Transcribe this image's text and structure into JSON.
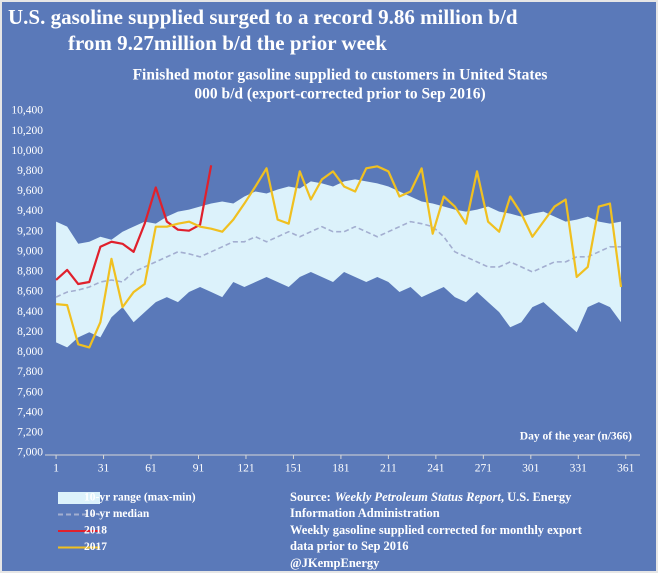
{
  "chart_data": {
    "type": "line",
    "title": [
      "U.S. gasoline supplied surged to a record 9.86 million b/d",
      "from 9.27million b/d the prior week"
    ],
    "subtitle": [
      "Finished motor gasoline supplied to customers in United States",
      "000 b/d (export-corrected prior to Sep 2016)"
    ],
    "x_label": "Day of the year (n/366)",
    "xlim": [
      -6,
      370
    ],
    "xticks": [
      1,
      31,
      61,
      91,
      121,
      151,
      181,
      211,
      241,
      271,
      301,
      331,
      361
    ],
    "ylim": [
      7000,
      10400
    ],
    "yticks": [
      {
        "value": 7000,
        "label": "7,000"
      },
      {
        "value": 7200,
        "label": "7,200"
      },
      {
        "value": 7400,
        "label": "7,400"
      },
      {
        "value": 7600,
        "label": "7,600"
      },
      {
        "value": 7800,
        "label": "7,800"
      },
      {
        "value": 8000,
        "label": "8,000"
      },
      {
        "value": 8200,
        "label": "8,200"
      },
      {
        "value": 8400,
        "label": "8,400"
      },
      {
        "value": 8600,
        "label": "8,600"
      },
      {
        "value": 8800,
        "label": "8,800"
      },
      {
        "value": 9000,
        "label": "9,000"
      },
      {
        "value": 9200,
        "label": "9,200"
      },
      {
        "value": 9400,
        "label": "9,400"
      },
      {
        "value": 9600,
        "label": "9,600"
      },
      {
        "value": 9800,
        "label": "9,800"
      },
      {
        "value": 10000,
        "label": "10,000"
      },
      {
        "value": 10200,
        "label": "10,200"
      },
      {
        "value": 10400,
        "label": "10,400"
      }
    ],
    "grid": false,
    "series": [
      {
        "name": "10-yr range (max-min)",
        "color": "#dcf2fb",
        "kind": "range",
        "x": [
          1,
          8,
          15,
          22,
          29,
          36,
          43,
          50,
          57,
          64,
          71,
          78,
          85,
          92,
          99,
          106,
          113,
          120,
          127,
          134,
          141,
          148,
          155,
          162,
          169,
          176,
          183,
          190,
          197,
          204,
          211,
          218,
          225,
          232,
          239,
          246,
          253,
          260,
          267,
          274,
          281,
          288,
          295,
          302,
          309,
          316,
          323,
          330,
          337,
          344,
          351,
          358
        ],
        "high": [
          9300,
          9250,
          9080,
          9100,
          9150,
          9120,
          9200,
          9250,
          9300,
          9280,
          9350,
          9400,
          9420,
          9450,
          9480,
          9500,
          9480,
          9550,
          9600,
          9580,
          9620,
          9650,
          9630,
          9700,
          9680,
          9650,
          9700,
          9720,
          9700,
          9680,
          9650,
          9600,
          9550,
          9500,
          9480,
          9450,
          9420,
          9400,
          9420,
          9450,
          9400,
          9380,
          9350,
          9380,
          9400,
          9350,
          9300,
          9320,
          9350,
          9300,
          9280,
          9300
        ],
        "low": [
          8100,
          8050,
          8150,
          8200,
          8150,
          8350,
          8450,
          8300,
          8400,
          8500,
          8550,
          8500,
          8600,
          8650,
          8600,
          8550,
          8700,
          8650,
          8700,
          8750,
          8700,
          8650,
          8750,
          8800,
          8750,
          8700,
          8800,
          8750,
          8700,
          8750,
          8700,
          8600,
          8650,
          8550,
          8600,
          8650,
          8550,
          8500,
          8600,
          8500,
          8400,
          8250,
          8300,
          8450,
          8500,
          8400,
          8300,
          8200,
          8450,
          8500,
          8450,
          8300
        ]
      },
      {
        "name": "10-yr median",
        "color": "#a3aed0",
        "dash": true,
        "x": [
          1,
          8,
          15,
          22,
          29,
          36,
          43,
          50,
          57,
          64,
          71,
          78,
          85,
          92,
          99,
          106,
          113,
          120,
          127,
          134,
          141,
          148,
          155,
          162,
          169,
          176,
          183,
          190,
          197,
          204,
          211,
          218,
          225,
          232,
          239,
          246,
          253,
          260,
          267,
          274,
          281,
          288,
          295,
          302,
          309,
          316,
          323,
          330,
          337,
          344,
          351,
          358
        ],
        "values": [
          8550,
          8600,
          8620,
          8650,
          8700,
          8720,
          8700,
          8800,
          8850,
          8900,
          8950,
          9000,
          8980,
          8950,
          9000,
          9050,
          9100,
          9100,
          9150,
          9100,
          9150,
          9200,
          9150,
          9200,
          9250,
          9200,
          9200,
          9250,
          9200,
          9150,
          9200,
          9250,
          9300,
          9280,
          9250,
          9150,
          9000,
          8950,
          8900,
          8850,
          8850,
          8900,
          8850,
          8800,
          8850,
          8900,
          8900,
          8950,
          8950,
          9000,
          9050,
          9050
        ]
      },
      {
        "name": "2018",
        "color": "#e0202c",
        "x": [
          1,
          8,
          15,
          22,
          29,
          36,
          43,
          50,
          57,
          64,
          71,
          78,
          85,
          92,
          99
        ],
        "values": [
          8720,
          8820,
          8680,
          8700,
          9050,
          9100,
          9080,
          9000,
          9280,
          9640,
          9300,
          9220,
          9210,
          9270,
          9860
        ]
      },
      {
        "name": "2017",
        "color": "#f0c020",
        "x": [
          1,
          8,
          15,
          22,
          29,
          36,
          43,
          50,
          57,
          64,
          71,
          78,
          85,
          92,
          99,
          106,
          113,
          120,
          127,
          134,
          141,
          148,
          155,
          162,
          169,
          176,
          183,
          190,
          197,
          204,
          211,
          218,
          225,
          232,
          239,
          246,
          253,
          260,
          267,
          274,
          281,
          288,
          295,
          302,
          309,
          316,
          323,
          330,
          337,
          344,
          351,
          358
        ],
        "values": [
          8480,
          8470,
          8080,
          8050,
          8300,
          8930,
          8450,
          8600,
          8680,
          9250,
          9250,
          9280,
          9300,
          9250,
          9230,
          9200,
          9320,
          9480,
          9650,
          9830,
          9320,
          9280,
          9800,
          9520,
          9720,
          9800,
          9650,
          9600,
          9830,
          9850,
          9800,
          9550,
          9600,
          9830,
          9180,
          9550,
          9450,
          9280,
          9800,
          9300,
          9200,
          9550,
          9380,
          9150,
          9300,
          9450,
          9520,
          8750,
          8850,
          9450,
          9480,
          8650
        ]
      }
    ],
    "notes": [
      "Source:",
      "Weekly Petroleum Status Report",
      ", U.S. Energy",
      "Information Administration",
      "Weekly gasoline supplied corrected for monthly export",
      "data prior to Sep 2016",
      "@JKempEnergy"
    ]
  }
}
